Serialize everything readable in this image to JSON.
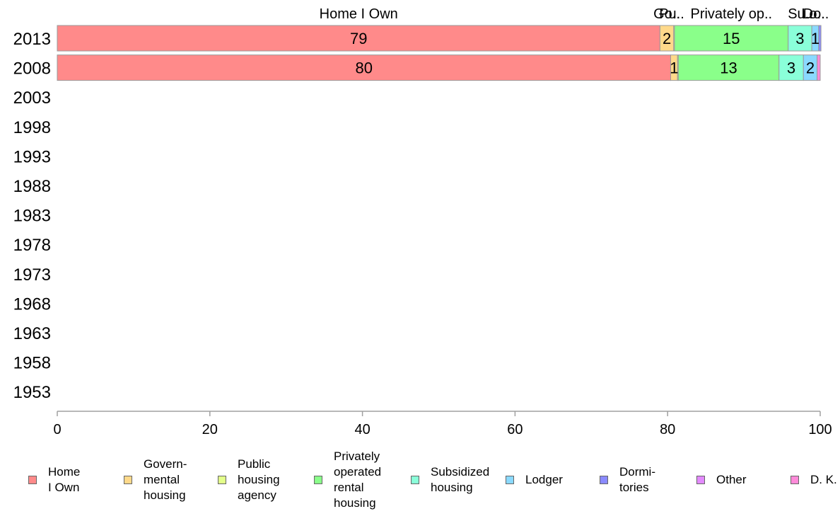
{
  "chart_data": {
    "type": "bar",
    "orientation": "horizontal",
    "stacked": true,
    "categories": [
      "2013",
      "2008",
      "2003",
      "1998",
      "1993",
      "1988",
      "1983",
      "1978",
      "1973",
      "1968",
      "1963",
      "1958",
      "1953"
    ],
    "series": [
      {
        "name": "Home\nI Own",
        "color": "#ff8a8a",
        "values": [
          79,
          80.4,
          null,
          null,
          null,
          null,
          null,
          null,
          null,
          null,
          null,
          null,
          null
        ],
        "labels": [
          "79",
          "80",
          "",
          "",
          "",
          "",
          "",
          "",
          "",
          "",
          "",
          "",
          ""
        ]
      },
      {
        "name": "Govern-\nmental\n housing",
        "color": "#ffd98a",
        "values": [
          1.8,
          0.9,
          null,
          null,
          null,
          null,
          null,
          null,
          null,
          null,
          null,
          null,
          null
        ],
        "labels": [
          "2",
          "1",
          "",
          "",
          "",
          "",
          "",
          "",
          "",
          "",
          "",
          "",
          ""
        ]
      },
      {
        "name": "Public\nhousing\nagency",
        "color": "#e3ff8a",
        "values": [
          0.1,
          0.1,
          null,
          null,
          null,
          null,
          null,
          null,
          null,
          null,
          null,
          null,
          null
        ],
        "labels": [
          "",
          "",
          "",
          "",
          "",
          "",
          "",
          "",
          "",
          "",
          "",
          "",
          ""
        ]
      },
      {
        "name": "Privately\noperated\nrental\nhousing",
        "color": "#8aff8a",
        "values": [
          14.9,
          13.2,
          null,
          null,
          null,
          null,
          null,
          null,
          null,
          null,
          null,
          null,
          null
        ],
        "labels": [
          "15",
          "13",
          "",
          "",
          "",
          "",
          "",
          "",
          "",
          "",
          "",
          "",
          ""
        ]
      },
      {
        "name": "Subsidized\n housing",
        "color": "#8affd9",
        "values": [
          3.1,
          3.2,
          null,
          null,
          null,
          null,
          null,
          null,
          null,
          null,
          null,
          null,
          null
        ],
        "labels": [
          "3",
          "3",
          "",
          "",
          "",
          "",
          "",
          "",
          "",
          "",
          "",
          "",
          ""
        ]
      },
      {
        "name": "Lodger",
        "color": "#8ad9ff",
        "values": [
          0.9,
          1.8,
          null,
          null,
          null,
          null,
          null,
          null,
          null,
          null,
          null,
          null,
          null
        ],
        "labels": [
          "1",
          "2",
          "",
          "",
          "",
          "",
          "",
          "",
          "",
          "",
          "",
          "",
          ""
        ]
      },
      {
        "name": "Dormi-\ntories",
        "color": "#8a8aff",
        "values": [
          0.3,
          0.0,
          null,
          null,
          null,
          null,
          null,
          null,
          null,
          null,
          null,
          null,
          null
        ],
        "labels": [
          "",
          "",
          "",
          "",
          "",
          "",
          "",
          "",
          "",
          "",
          "",
          "",
          ""
        ]
      },
      {
        "name": "Other",
        "color": "#e38aff",
        "values": [
          0.0,
          0.0,
          null,
          null,
          null,
          null,
          null,
          null,
          null,
          null,
          null,
          null,
          null
        ],
        "labels": [
          "",
          "",
          "",
          "",
          "",
          "",
          "",
          "",
          "",
          "",
          "",
          "",
          ""
        ]
      },
      {
        "name": "D. K.",
        "color": "#ff8ad9",
        "values": [
          0.0,
          0.4,
          null,
          null,
          null,
          null,
          null,
          null,
          null,
          null,
          null,
          null,
          null
        ],
        "labels": [
          "",
          "",
          "",
          "",
          "",
          "",
          "",
          "",
          "",
          "",
          "",
          "",
          ""
        ]
      }
    ],
    "top_labels": [
      "Home I Own",
      "Go..",
      "Pu..",
      "Privately op..",
      "Su..",
      "Lo..",
      "Do.."
    ],
    "xlim": [
      0,
      100
    ],
    "x_ticks": [
      "0",
      "20",
      "40",
      "60",
      "80",
      "100"
    ],
    "grid": false,
    "legend_position": "bottom"
  }
}
